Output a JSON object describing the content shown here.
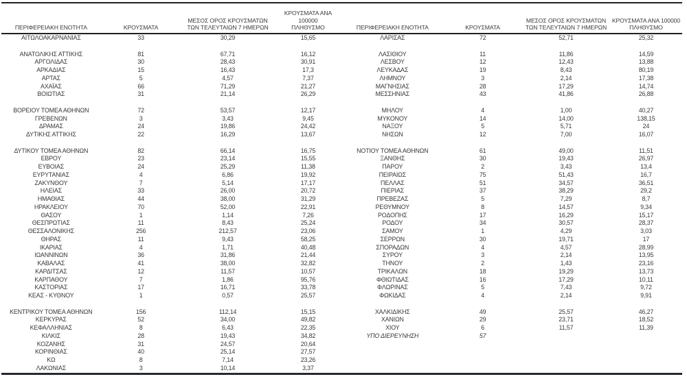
{
  "table": {
    "headers": {
      "region": "ΠΕΡΙΦΕΡΕΙΑΚΗ ΕΝΟΤΗΤΑ",
      "cases": "ΚΡΟΥΣΜΑΤΑ",
      "avg7_line1": "ΜΕΣΟΣ ΟΡΟΣ ΚΡΟΥΣΜΑΤΩΝ",
      "avg7_line2": "ΤΩΝ ΤΕΛΕΥΤΑΙΩΝ 7 ΗΜΕΡΩΝ",
      "per100k_line1": "ΚΡΟΥΣΜΑΤΑ ΑΝΑ 100000",
      "per100k_line2": "ΠΛΗΘΥΣΜΟ"
    },
    "rows": [
      {
        "l": [
          "ΑΙΤΩΛΟΑΚΑΡΝΑΝΙΑΣ",
          "33",
          "30,29",
          "15,65"
        ],
        "r": [
          "ΛΑΡΙΣΑΣ",
          "72",
          "52,71",
          "25,32"
        ]
      },
      {
        "blank": true
      },
      {
        "l": [
          "ΑΝΑΤΟΛΙΚΗΣ ΑΤΤΙΚΗΣ",
          "81",
          "67,71",
          "16,12"
        ],
        "r": [
          "ΛΑΣΙΘΙΟΥ",
          "11",
          "11,86",
          "14,59"
        ]
      },
      {
        "l": [
          "ΑΡΓΟΛΙΔΑΣ",
          "30",
          "28,43",
          "30,91"
        ],
        "r": [
          "ΛΕΣΒΟΥ",
          "12",
          "12,43",
          "13,88"
        ]
      },
      {
        "l": [
          "ΑΡΚΑΔΙΑΣ",
          "15",
          "16,43",
          "17,3"
        ],
        "r": [
          "ΛΕΥΚΑΔΑΣ",
          "19",
          "8,43",
          "80,19"
        ]
      },
      {
        "l": [
          "ΑΡΤΑΣ",
          "5",
          "4,57",
          "7,37"
        ],
        "r": [
          "ΛΗΜΝΟΥ",
          "3",
          "2,14",
          "17,38"
        ]
      },
      {
        "l": [
          "ΑΧΑΪΑΣ",
          "66",
          "71,29",
          "21,27"
        ],
        "r": [
          "ΜΑΓΝΗΣΙΑΣ",
          "28",
          "17,29",
          "14,74"
        ]
      },
      {
        "l": [
          "ΒΟΙΩΤΙΑΣ",
          "31",
          "21,14",
          "26,29"
        ],
        "r": [
          "ΜΕΣΣΗΝΙΑΣ",
          "43",
          "41,86",
          "26,88"
        ]
      },
      {
        "blank": true
      },
      {
        "l": [
          "ΒΟΡΕΙΟΥ ΤΟΜΕΑ ΑΘΗΝΩΝ",
          "72",
          "53,57",
          "12,17"
        ],
        "r": [
          "ΜΗΛΟΥ",
          "4",
          "1,00",
          "40,27"
        ]
      },
      {
        "l": [
          "ΓΡΕΒΕΝΩΝ",
          "3",
          "3,43",
          "9,45"
        ],
        "r": [
          "ΜΥΚΟΝΟΥ",
          "14",
          "14,00",
          "138,15"
        ]
      },
      {
        "l": [
          "ΔΡΑΜΑΣ",
          "24",
          "19,86",
          "24,42"
        ],
        "r": [
          "ΝΑΞΟΥ",
          "5",
          "5,71",
          "24"
        ]
      },
      {
        "l": [
          "ΔΥΤΙΚΗΣ ΑΤΤΙΚΗΣ",
          "22",
          "16,29",
          "13,67"
        ],
        "r": [
          "ΝΗΣΩΝ",
          "12",
          "7,00",
          "16,07"
        ]
      },
      {
        "blank": true
      },
      {
        "l": [
          "ΔΥΤΙΚΟΥ ΤΟΜΕΑ ΑΘΗΝΩΝ",
          "82",
          "66,14",
          "16,75"
        ],
        "r": [
          "ΝΟΤΙΟΥ ΤΟΜΕΑ ΑΘΗΝΩΝ",
          "61",
          "49,00",
          "11,51"
        ]
      },
      {
        "l": [
          "ΕΒΡΟΥ",
          "23",
          "23,14",
          "15,55"
        ],
        "r": [
          "ΞΑΝΘΗΣ",
          "30",
          "19,43",
          "26,97"
        ]
      },
      {
        "l": [
          "ΕΥΒΟΙΑΣ",
          "24",
          "25,29",
          "11,38"
        ],
        "r": [
          "ΠΑΡΟΥ",
          "2",
          "3,43",
          "13,4"
        ]
      },
      {
        "l": [
          "ΕΥΡΥΤΑΝΙΑΣ",
          "4",
          "6,86",
          "19,92"
        ],
        "r": [
          "ΠΕΙΡΑΙΩΣ",
          "75",
          "51,43",
          "16,7"
        ]
      },
      {
        "l": [
          "ΖΑΚΥΝΘΟΥ",
          "7",
          "5,14",
          "17,17"
        ],
        "r": [
          "ΠΕΛΛΑΣ",
          "51",
          "34,57",
          "36,51"
        ]
      },
      {
        "l": [
          "ΗΛΕΙΑΣ",
          "33",
          "26,00",
          "20,72"
        ],
        "r": [
          "ΠΙΕΡΙΑΣ",
          "37",
          "38,29",
          "29,2"
        ]
      },
      {
        "l": [
          "ΗΜΑΘΙΑΣ",
          "44",
          "38,00",
          "31,29"
        ],
        "r": [
          "ΠΡΕΒΕΖΑΣ",
          "5",
          "7,29",
          "8,7"
        ]
      },
      {
        "l": [
          "ΗΡΑΚΛΕΙΟΥ",
          "70",
          "52,00",
          "22,91"
        ],
        "r": [
          "ΡΕΘΥΜΝΟΥ",
          "8",
          "14,57",
          "9,34"
        ]
      },
      {
        "l": [
          "ΘΑΣΟΥ",
          "1",
          "1,14",
          "7,26"
        ],
        "r": [
          "ΡΟΔΟΠΗΣ",
          "17",
          "16,29",
          "15,17"
        ]
      },
      {
        "l": [
          "ΘΕΣΠΡΩΤΙΑΣ",
          "11",
          "8,43",
          "25,24"
        ],
        "r": [
          "ΡΟΔΟΥ",
          "34",
          "30,57",
          "28,37"
        ]
      },
      {
        "l": [
          "ΘΕΣΣΑΛΟΝΙΚΗΣ",
          "256",
          "212,57",
          "23,06"
        ],
        "r": [
          "ΣΑΜΟΥ",
          "1",
          "4,29",
          "3,03"
        ]
      },
      {
        "l": [
          "ΘΗΡΑΣ",
          "11",
          "9,43",
          "58,25"
        ],
        "r": [
          "ΣΕΡΡΩΝ",
          "30",
          "19,71",
          "17"
        ]
      },
      {
        "l": [
          "ΙΚΑΡΙΑΣ",
          "4",
          "1,71",
          "40,48"
        ],
        "r": [
          "ΣΠΟΡΑΔΩΝ",
          "4",
          "4,57",
          "28,99"
        ]
      },
      {
        "l": [
          "ΙΩΑΝΝΙΝΩΝ",
          "36",
          "31,86",
          "21,44"
        ],
        "r": [
          "ΣΥΡΟΥ",
          "3",
          "2,14",
          "13,95"
        ]
      },
      {
        "l": [
          "ΚΑΒΑΛΑΣ",
          "41",
          "38,00",
          "32,82"
        ],
        "r": [
          "ΤΗΝΟΥ",
          "2",
          "1,43",
          "23,16"
        ]
      },
      {
        "l": [
          "ΚΑΡΔΙΤΣΑΣ",
          "12",
          "11,57",
          "10,57"
        ],
        "r": [
          "ΤΡΙΚΑΛΩΝ",
          "18",
          "19,29",
          "13,73"
        ]
      },
      {
        "l": [
          "ΚΑΡΠΑΘΟΥ",
          "7",
          "1,86",
          "95,76"
        ],
        "r": [
          "ΦΘΙΩΤΙΔΑΣ",
          "16",
          "17,29",
          "10,11"
        ]
      },
      {
        "l": [
          "ΚΑΣΤΟΡΙΑΣ",
          "17",
          "16,71",
          "33,78"
        ],
        "r": [
          "ΦΛΩΡΙΝΑΣ",
          "5",
          "7,43",
          "9,72"
        ]
      },
      {
        "l": [
          "ΚΕΑΣ - ΚΥΘΝΟΥ",
          "1",
          "0,57",
          "25,57"
        ],
        "r": [
          "ΦΩΚΙΔΑΣ",
          "4",
          "2,14",
          "9,91"
        ]
      },
      {
        "blank": true
      },
      {
        "l": [
          "ΚΕΝΤΡΙΚΟΥ ΤΟΜΕΑ ΑΘΗΝΩΝ",
          "156",
          "112,14",
          "15,15"
        ],
        "r": [
          "ΧΑΛΚΙΔΙΚΗΣ",
          "49",
          "25,57",
          "46,27"
        ]
      },
      {
        "l": [
          "ΚΕΡΚΥΡΑΣ",
          "52",
          "34,00",
          "49,82"
        ],
        "r": [
          "ΧΑΝΙΩΝ",
          "29",
          "23,71",
          "18,52"
        ]
      },
      {
        "l": [
          "ΚΕΦΑΛΛΗΝΙΑΣ",
          "8",
          "6,43",
          "22,35"
        ],
        "r": [
          "ΧΙΟΥ",
          "6",
          "11,57",
          "11,39"
        ]
      },
      {
        "l": [
          "ΚΙΛΚΙΣ",
          "28",
          "19,43",
          "34,82"
        ],
        "r": [
          "ΥΠΟ ΔΙΕΡΕΥΝΗΣΗ",
          "57",
          "",
          ""
        ],
        "r_italic": true
      },
      {
        "l": [
          "ΚΟΖΑΝΗΣ",
          "31",
          "24,57",
          "20,64"
        ]
      },
      {
        "l": [
          "ΚΟΡΙΝΘΙΑΣ",
          "40",
          "25,14",
          "27,57"
        ]
      },
      {
        "l": [
          "ΚΩ",
          "8",
          "7,14",
          "23,26"
        ]
      },
      {
        "l": [
          "ΛΑΚΩΝΙΑΣ",
          "3",
          "10,14",
          "3,37"
        ]
      }
    ]
  },
  "colors": {
    "text": "#3a3a3a",
    "rule": "#202020",
    "background": "#ffffff"
  }
}
